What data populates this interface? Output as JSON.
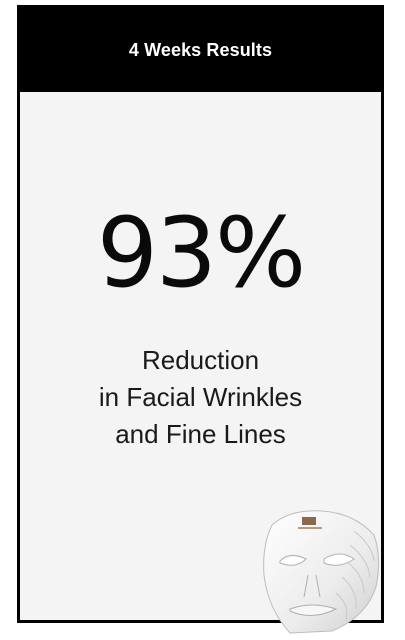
{
  "card": {
    "title": "4 Weeks Results",
    "stat_value": "93%",
    "description_lines": [
      "Reduction",
      "in Facial Wrinkles",
      "and Fine Lines"
    ]
  },
  "colors": {
    "header_bg": "#000000",
    "card_bg": "#f4f4f4",
    "text": "#0a0a0a"
  },
  "product_image": {
    "icon": "led-face-mask-icon"
  }
}
